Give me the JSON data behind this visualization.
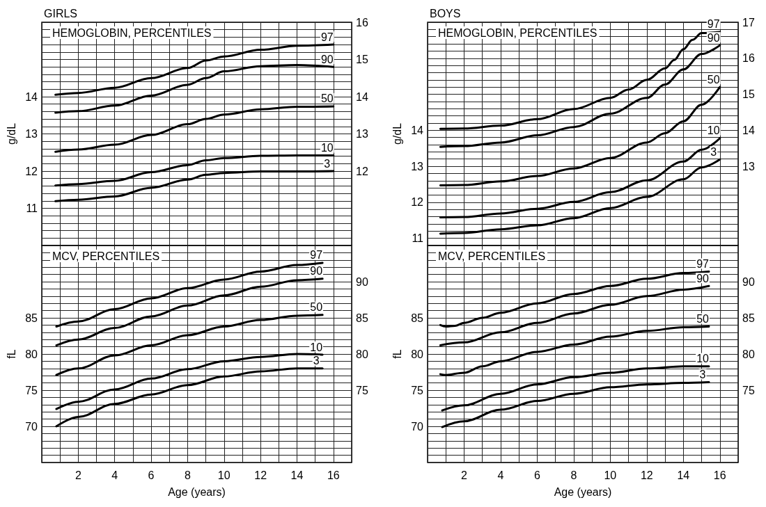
{
  "chart_data": [
    {
      "type": "line",
      "title": "GIRLS",
      "ylabel": "g/dL",
      "annotations": [
        "HEMOGLOBIN, PERCENTILES"
      ],
      "grid": true,
      "tick_labels": "y",
      "xlim": [
        0,
        17
      ],
      "xticks": [
        {
          "value": 1,
          "label": null
        },
        {
          "value": 2,
          "label": null
        },
        {
          "value": 3,
          "label": null
        },
        {
          "value": 4,
          "label": null
        },
        {
          "value": 5,
          "label": null
        },
        {
          "value": 6,
          "label": null
        },
        {
          "value": 7,
          "label": null
        },
        {
          "value": 8,
          "label": null
        },
        {
          "value": 9,
          "label": null
        },
        {
          "value": 10,
          "label": null
        },
        {
          "value": 11,
          "label": null
        },
        {
          "value": 12,
          "label": null
        },
        {
          "value": 13,
          "label": null
        },
        {
          "value": 14,
          "label": null
        },
        {
          "value": 15,
          "label": null
        },
        {
          "value": 16,
          "label": null
        }
      ],
      "ylim": [
        10,
        16
      ],
      "yticks": [
        {
          "value": 10,
          "label": null
        },
        {
          "value": 10.2,
          "label": null
        },
        {
          "value": 10.4,
          "label": null
        },
        {
          "value": 10.6,
          "label": null
        },
        {
          "value": 10.8,
          "label": null
        },
        11,
        {
          "value": 11.2,
          "label": null
        },
        {
          "value": 11.4,
          "label": null
        },
        {
          "value": 11.6,
          "label": null
        },
        {
          "value": 11.8,
          "label": null
        },
        12,
        {
          "value": 12.2,
          "label": null
        },
        {
          "value": 12.4,
          "label": null
        },
        {
          "value": 12.6,
          "label": null
        },
        {
          "value": 12.8,
          "label": null
        },
        13,
        {
          "value": 13.2,
          "label": null
        },
        {
          "value": 13.4,
          "label": null
        },
        {
          "value": 13.6,
          "label": null
        },
        {
          "value": 13.8,
          "label": null
        },
        14,
        {
          "value": 14.2,
          "label": null
        },
        {
          "value": 14.4,
          "label": null
        },
        {
          "value": 14.6,
          "label": null
        },
        {
          "value": 14.8,
          "label": null
        },
        {
          "value": 15,
          "label": null
        },
        {
          "value": 15.2,
          "label": null
        },
        {
          "value": 15.4,
          "label": null
        },
        {
          "value": 15.6,
          "label": null
        },
        {
          "value": 15.8,
          "label": null
        },
        {
          "value": 16,
          "label": null
        }
      ],
      "y2lim": [
        10,
        16
      ],
      "y2ticks": [
        12,
        13,
        14,
        15,
        16
      ],
      "x": [
        0.75,
        2,
        4,
        6,
        8,
        9,
        10,
        12,
        14,
        16
      ],
      "series": [
        {
          "name": "97",
          "color": "#000000",
          "values": [
            14.05,
            14.1,
            14.24,
            14.5,
            14.77,
            14.97,
            15.08,
            15.26,
            15.37,
            15.4
          ]
        },
        {
          "name": "90",
          "color": "#000000",
          "values": [
            13.57,
            13.61,
            13.76,
            14.03,
            14.32,
            14.5,
            14.68,
            14.82,
            14.85,
            14.8
          ]
        },
        {
          "name": "50",
          "color": "#000000",
          "values": [
            12.52,
            12.58,
            12.71,
            12.97,
            13.26,
            13.4,
            13.52,
            13.66,
            13.73,
            13.74
          ]
        },
        {
          "name": "10",
          "color": "#000000",
          "values": [
            11.61,
            11.65,
            11.74,
            11.97,
            12.16,
            12.29,
            12.35,
            12.41,
            12.42,
            12.42
          ]
        },
        {
          "name": "3",
          "color": "#000000",
          "values": [
            11.19,
            11.23,
            11.32,
            11.55,
            11.77,
            11.9,
            11.95,
            11.99,
            11.99,
            12.0
          ]
        }
      ]
    },
    {
      "type": "line",
      "xlabel": "Age (years)",
      "ylabel": "fL",
      "annotations": [
        "MCV, PERCENTILES"
      ],
      "grid": true,
      "xlim": [
        0,
        17
      ],
      "xticks": [
        {
          "value": 1,
          "label": null
        },
        2,
        {
          "value": 3,
          "label": null
        },
        4,
        {
          "value": 5,
          "label": null
        },
        6,
        {
          "value": 7,
          "label": null
        },
        8,
        {
          "value": 9,
          "label": null
        },
        10,
        {
          "value": 11,
          "label": null
        },
        12,
        {
          "value": 13,
          "label": null
        },
        14,
        {
          "value": 15,
          "label": null
        },
        16
      ],
      "ylim": [
        65,
        95
      ],
      "yticks": [
        {
          "value": 65,
          "label": null
        },
        {
          "value": 66,
          "label": null
        },
        {
          "value": 67,
          "label": null
        },
        {
          "value": 68,
          "label": null
        },
        {
          "value": 69,
          "label": null
        },
        70,
        {
          "value": 71,
          "label": null
        },
        {
          "value": 72,
          "label": null
        },
        {
          "value": 73,
          "label": null
        },
        {
          "value": 74,
          "label": null
        },
        75,
        {
          "value": 76,
          "label": null
        },
        {
          "value": 77,
          "label": null
        },
        {
          "value": 78,
          "label": null
        },
        {
          "value": 79,
          "label": null
        },
        80,
        {
          "value": 81,
          "label": null
        },
        {
          "value": 82,
          "label": null
        },
        {
          "value": 83,
          "label": null
        },
        {
          "value": 84,
          "label": null
        },
        85,
        {
          "value": 86,
          "label": null
        },
        {
          "value": 87,
          "label": null
        },
        {
          "value": 88,
          "label": null
        },
        {
          "value": 89,
          "label": null
        },
        {
          "value": 90,
          "label": null
        },
        {
          "value": 91,
          "label": null
        },
        {
          "value": 92,
          "label": null
        },
        {
          "value": 93,
          "label": null
        },
        {
          "value": 94,
          "label": null
        },
        {
          "value": 95,
          "label": null
        }
      ],
      "y2lim": [
        65,
        95
      ],
      "y2ticks": [
        75,
        80,
        85,
        90
      ],
      "x": [
        0.8,
        2,
        4,
        6,
        8,
        10,
        12,
        14,
        15.4
      ],
      "series": [
        {
          "name": "97",
          "color": "#000000",
          "values": [
            83.8,
            84.5,
            86.2,
            87.7,
            89.1,
            90.3,
            91.4,
            92.3,
            92.6
          ]
        },
        {
          "name": "90",
          "color": "#000000",
          "values": [
            81.2,
            82.0,
            83.6,
            85.2,
            86.7,
            88.1,
            89.3,
            90.2,
            90.4
          ]
        },
        {
          "name": "50",
          "color": "#000000",
          "values": [
            77.1,
            78.0,
            79.8,
            81.2,
            82.6,
            83.8,
            84.7,
            85.3,
            85.4
          ]
        },
        {
          "name": "10",
          "color": "#000000",
          "values": [
            72.4,
            73.4,
            75.1,
            76.6,
            77.9,
            79.0,
            79.6,
            80.0,
            79.9
          ]
        },
        {
          "name": "3",
          "color": "#000000",
          "values": [
            70.0,
            71.3,
            73.1,
            74.4,
            75.7,
            76.9,
            77.6,
            78.0,
            78.0
          ]
        }
      ]
    },
    {
      "type": "line",
      "title": "BOYS",
      "ylabel": "g/dL",
      "annotations": [
        "HEMOGLOBIN, PERCENTILES"
      ],
      "grid": true,
      "tick_labels": "y",
      "xlim": [
        0,
        17
      ],
      "xticks": [
        {
          "value": 1,
          "label": null
        },
        {
          "value": 2,
          "label": null
        },
        {
          "value": 3,
          "label": null
        },
        {
          "value": 4,
          "label": null
        },
        {
          "value": 5,
          "label": null
        },
        {
          "value": 6,
          "label": null
        },
        {
          "value": 7,
          "label": null
        },
        {
          "value": 8,
          "label": null
        },
        {
          "value": 9,
          "label": null
        },
        {
          "value": 10,
          "label": null
        },
        {
          "value": 11,
          "label": null
        },
        {
          "value": 12,
          "label": null
        },
        {
          "value": 13,
          "label": null
        },
        {
          "value": 14,
          "label": null
        },
        {
          "value": 15,
          "label": null
        },
        {
          "value": 16,
          "label": null
        }
      ],
      "ylim": [
        10.8,
        17
      ],
      "yticks": [
        {
          "value": 10.8,
          "label": null
        },
        11,
        {
          "value": 11.2,
          "label": null
        },
        {
          "value": 11.4,
          "label": null
        },
        {
          "value": 11.6,
          "label": null
        },
        {
          "value": 11.8,
          "label": null
        },
        12,
        {
          "value": 12.2,
          "label": null
        },
        {
          "value": 12.4,
          "label": null
        },
        {
          "value": 12.6,
          "label": null
        },
        {
          "value": 12.8,
          "label": null
        },
        13,
        {
          "value": 13.2,
          "label": null
        },
        {
          "value": 13.4,
          "label": null
        },
        {
          "value": 13.6,
          "label": null
        },
        {
          "value": 13.8,
          "label": null
        },
        14,
        {
          "value": 14.2,
          "label": null
        },
        {
          "value": 14.4,
          "label": null
        },
        {
          "value": 14.6,
          "label": null
        },
        {
          "value": 14.8,
          "label": null
        },
        {
          "value": 15,
          "label": null
        },
        {
          "value": 15.2,
          "label": null
        },
        {
          "value": 15.4,
          "label": null
        },
        {
          "value": 15.6,
          "label": null
        },
        {
          "value": 15.8,
          "label": null
        },
        {
          "value": 16,
          "label": null
        },
        {
          "value": 16.2,
          "label": null
        },
        {
          "value": 16.4,
          "label": null
        },
        {
          "value": 16.6,
          "label": null
        },
        {
          "value": 16.8,
          "label": null
        },
        {
          "value": 17,
          "label": null
        }
      ],
      "y2lim": [
        10.8,
        17
      ],
      "y2ticks": [
        13,
        14,
        15,
        16,
        17
      ],
      "series": [
        {
          "name": "97",
          "color": "#000000",
          "x": [
            0.7,
            2,
            4,
            6,
            8,
            10,
            11,
            12,
            13,
            13.5,
            14,
            14.5,
            15,
            16
          ],
          "values": [
            14.04,
            14.05,
            14.13,
            14.31,
            14.59,
            14.9,
            15.13,
            15.4,
            15.72,
            15.95,
            16.25,
            16.51,
            16.7,
            16.73
          ]
        },
        {
          "name": "90",
          "color": "#000000",
          "x": [
            0.7,
            2,
            4,
            6,
            8,
            10,
            12,
            13,
            14,
            15,
            16
          ],
          "values": [
            13.54,
            13.56,
            13.66,
            13.86,
            14.09,
            14.46,
            14.9,
            15.27,
            15.69,
            16.12,
            16.36
          ]
        },
        {
          "name": "50",
          "color": "#000000",
          "x": [
            0.7,
            2,
            4,
            6,
            8,
            10,
            12,
            13,
            14,
            15,
            16
          ],
          "values": [
            12.47,
            12.48,
            12.58,
            12.73,
            12.94,
            13.23,
            13.66,
            13.92,
            14.25,
            14.71,
            15.2
          ]
        },
        {
          "name": "10",
          "color": "#000000",
          "x": [
            0.7,
            2,
            4,
            6,
            8,
            10,
            12,
            14,
            15,
            16
          ],
          "values": [
            11.58,
            11.59,
            11.69,
            11.82,
            12.01,
            12.28,
            12.61,
            13.13,
            13.46,
            13.78
          ]
        },
        {
          "name": "3",
          "color": "#000000",
          "x": [
            0.7,
            2,
            4,
            6,
            8,
            10,
            12,
            14,
            15,
            16
          ],
          "values": [
            11.13,
            11.15,
            11.25,
            11.36,
            11.56,
            11.84,
            12.15,
            12.64,
            12.97,
            13.19
          ]
        }
      ]
    },
    {
      "type": "line",
      "xlabel": "Age (years)",
      "ylabel": "fL",
      "annotations": [
        "MCV, PERCENTILES"
      ],
      "grid": true,
      "xlim": [
        0,
        17
      ],
      "xticks": [
        {
          "value": 1,
          "label": null
        },
        2,
        {
          "value": 3,
          "label": null
        },
        4,
        {
          "value": 5,
          "label": null
        },
        6,
        {
          "value": 7,
          "label": null
        },
        8,
        {
          "value": 9,
          "label": null
        },
        10,
        {
          "value": 11,
          "label": null
        },
        12,
        {
          "value": 13,
          "label": null
        },
        14,
        {
          "value": 15,
          "label": null
        },
        16
      ],
      "ylim": [
        65,
        95
      ],
      "yticks": [
        {
          "value": 65,
          "label": null
        },
        {
          "value": 66,
          "label": null
        },
        {
          "value": 67,
          "label": null
        },
        {
          "value": 68,
          "label": null
        },
        {
          "value": 69,
          "label": null
        },
        70,
        {
          "value": 71,
          "label": null
        },
        {
          "value": 72,
          "label": null
        },
        {
          "value": 73,
          "label": null
        },
        {
          "value": 74,
          "label": null
        },
        75,
        {
          "value": 76,
          "label": null
        },
        {
          "value": 77,
          "label": null
        },
        {
          "value": 78,
          "label": null
        },
        {
          "value": 79,
          "label": null
        },
        80,
        {
          "value": 81,
          "label": null
        },
        {
          "value": 82,
          "label": null
        },
        {
          "value": 83,
          "label": null
        },
        {
          "value": 84,
          "label": null
        },
        85,
        {
          "value": 86,
          "label": null
        },
        {
          "value": 87,
          "label": null
        },
        {
          "value": 88,
          "label": null
        },
        {
          "value": 89,
          "label": null
        },
        {
          "value": 90,
          "label": null
        },
        {
          "value": 91,
          "label": null
        },
        {
          "value": 92,
          "label": null
        },
        {
          "value": 93,
          "label": null
        },
        {
          "value": 94,
          "label": null
        },
        {
          "value": 95,
          "label": null
        }
      ],
      "y2lim": [
        65,
        95
      ],
      "y2ticks": [
        75,
        80,
        85,
        90
      ],
      "series": [
        {
          "name": "97",
          "color": "#000000",
          "x": [
            0.7,
            1,
            1.5,
            2,
            3,
            4,
            6,
            8,
            10,
            12,
            14,
            15.4
          ],
          "values": [
            84.0,
            83.8,
            83.9,
            84.3,
            85.0,
            85.7,
            87.0,
            88.3,
            89.4,
            90.4,
            91.2,
            91.4
          ]
        },
        {
          "name": "90",
          "color": "#000000",
          "x": [
            0.7,
            2,
            4,
            6,
            8,
            10,
            12,
            14,
            15.4
          ],
          "values": [
            81.2,
            81.6,
            83.0,
            84.3,
            85.6,
            86.8,
            88.0,
            88.9,
            89.4
          ]
        },
        {
          "name": "50",
          "color": "#000000",
          "x": [
            0.7,
            1,
            2,
            3,
            4,
            6,
            8,
            10,
            12,
            14,
            15.4
          ],
          "values": [
            77.2,
            77.1,
            77.4,
            78.3,
            79.0,
            80.3,
            81.3,
            82.4,
            83.2,
            83.7,
            83.8
          ]
        },
        {
          "name": "10",
          "color": "#000000",
          "x": [
            0.8,
            2,
            4,
            6,
            8,
            10,
            12,
            14,
            15.4
          ],
          "values": [
            72.2,
            72.9,
            74.5,
            75.8,
            76.8,
            77.4,
            78.0,
            78.3,
            78.3
          ]
        },
        {
          "name": "3",
          "color": "#000000",
          "x": [
            0.8,
            2,
            4,
            6,
            8,
            10,
            12,
            14,
            15.4
          ],
          "values": [
            69.9,
            70.7,
            72.3,
            73.5,
            74.5,
            75.4,
            75.8,
            76.0,
            76.1
          ]
        }
      ]
    }
  ]
}
